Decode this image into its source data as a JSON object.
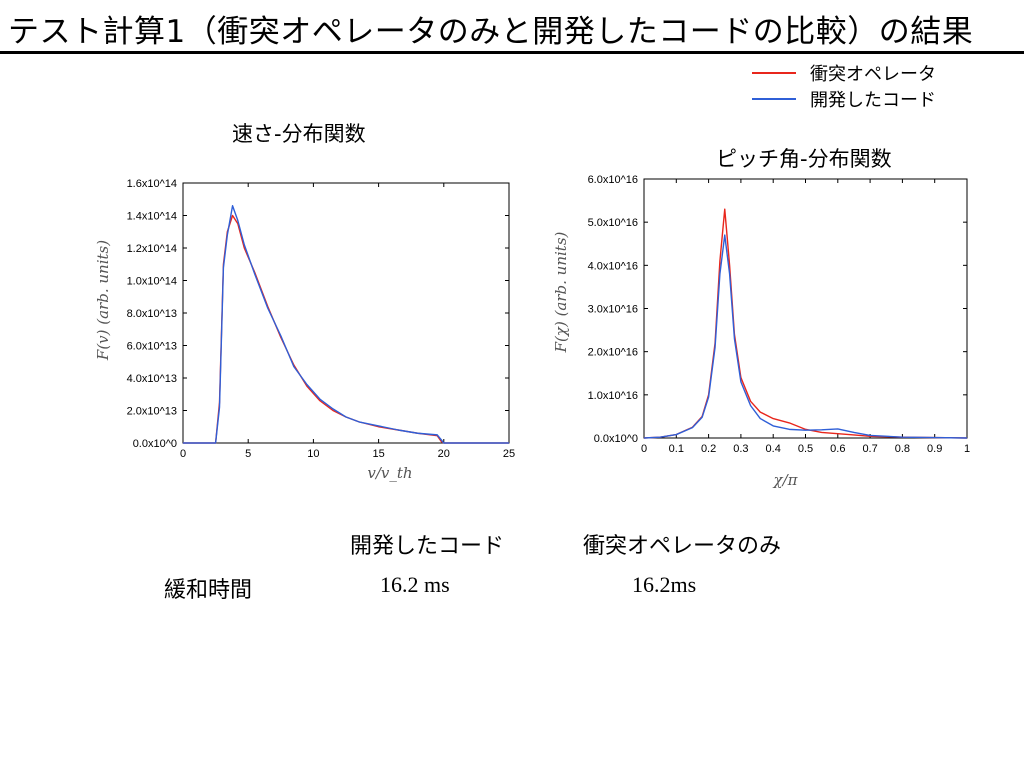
{
  "slide": {
    "title": "テスト計算1（衝突オペレータのみと開発したコードの比較）の結果"
  },
  "legend": [
    {
      "label": "衝突オペレータ",
      "color": "#e8261c"
    },
    {
      "label": "開発したコード",
      "color": "#2f5fd7"
    }
  ],
  "chart_data": [
    {
      "type": "line",
      "title": "速さ-分布関数",
      "xlabel": "v/v_th",
      "ylabel": "F(v)  (arb. units)",
      "xlim": [
        0,
        25
      ],
      "ylim": [
        0,
        160000000000000.0
      ],
      "xticks": [
        {
          "value": 0,
          "label": "0"
        },
        {
          "value": 5,
          "label": "5"
        },
        {
          "value": 10,
          "label": "10"
        },
        {
          "value": 15,
          "label": "15"
        },
        {
          "value": 20,
          "label": "20"
        },
        {
          "value": 25,
          "label": "25"
        }
      ],
      "yticks": [
        {
          "value": 0,
          "label": "0.0x10^0"
        },
        {
          "value": 20000000000000.0,
          "label": "2.0x10^13"
        },
        {
          "value": 40000000000000.0,
          "label": "4.0x10^13"
        },
        {
          "value": 60000000000000.0,
          "label": "6.0x10^13"
        },
        {
          "value": 80000000000000.0,
          "label": "8.0x10^13"
        },
        {
          "value": 100000000000000.0,
          "label": "1.0x10^14"
        },
        {
          "value": 120000000000000.0,
          "label": "1.2x10^14"
        },
        {
          "value": 140000000000000.0,
          "label": "1.4x10^14"
        },
        {
          "value": 160000000000000.0,
          "label": "1.6x10^14"
        }
      ],
      "series": [
        {
          "name": "衝突オペレータ",
          "color": "#e8261c",
          "points": [
            [
              0,
              0
            ],
            [
              2.5,
              0
            ],
            [
              2.8,
              25000000000000.0
            ],
            [
              3.1,
              110000000000000.0
            ],
            [
              3.4,
              130000000000000.0
            ],
            [
              3.8,
              140000000000000.0
            ],
            [
              4.2,
              135000000000000.0
            ],
            [
              4.7,
              120000000000000.0
            ],
            [
              5.5,
              105000000000000.0
            ],
            [
              6.5,
              84000000000000.0
            ],
            [
              7.5,
              65000000000000.0
            ],
            [
              8.5,
              48000000000000.0
            ],
            [
              9.5,
              35000000000000.0
            ],
            [
              10.5,
              26000000000000.0
            ],
            [
              11.5,
              20000000000000.0
            ],
            [
              12.5,
              16000000000000.0
            ],
            [
              13.5,
              13000000000000.0
            ],
            [
              15,
              10000000000000.0
            ],
            [
              16.5,
              8000000000000.0
            ],
            [
              18,
              6000000000000.0
            ],
            [
              19.5,
              4500000000000.0
            ],
            [
              19.8,
              1000000000000.0
            ],
            [
              20,
              0
            ],
            [
              25,
              0
            ]
          ]
        },
        {
          "name": "開発したコード",
          "color": "#2f5fd7",
          "points": [
            [
              0,
              0
            ],
            [
              2.5,
              0
            ],
            [
              2.8,
              22000000000000.0
            ],
            [
              3.1,
              108000000000000.0
            ],
            [
              3.4,
              128000000000000.0
            ],
            [
              3.8,
              146000000000000.0
            ],
            [
              4.2,
              137000000000000.0
            ],
            [
              4.7,
              122000000000000.0
            ],
            [
              5.5,
              104000000000000.0
            ],
            [
              6.5,
              83000000000000.0
            ],
            [
              7.5,
              66000000000000.0
            ],
            [
              8.5,
              47000000000000.0
            ],
            [
              9.5,
              36000000000000.0
            ],
            [
              10.5,
              27000000000000.0
            ],
            [
              11.5,
              21000000000000.0
            ],
            [
              12.5,
              16000000000000.0
            ],
            [
              13.5,
              13000000000000.0
            ],
            [
              15,
              10500000000000.0
            ],
            [
              16.5,
              8000000000000.0
            ],
            [
              18,
              6000000000000.0
            ],
            [
              19.5,
              5000000000000.0
            ],
            [
              19.8,
              2000000000000.0
            ],
            [
              20,
              0
            ],
            [
              25,
              0
            ]
          ]
        }
      ]
    },
    {
      "type": "line",
      "title": "ピッチ角-分布関数",
      "xlabel": "χ/π",
      "ylabel": "F(χ)  (arb. units)",
      "xlim": [
        0,
        1
      ],
      "ylim": [
        0,
        6e+16
      ],
      "xticks": [
        {
          "value": 0,
          "label": "0"
        },
        {
          "value": 0.1,
          "label": "0.1"
        },
        {
          "value": 0.2,
          "label": "0.2"
        },
        {
          "value": 0.3,
          "label": "0.3"
        },
        {
          "value": 0.4,
          "label": "0.4"
        },
        {
          "value": 0.5,
          "label": "0.5"
        },
        {
          "value": 0.6,
          "label": "0.6"
        },
        {
          "value": 0.7,
          "label": "0.7"
        },
        {
          "value": 0.8,
          "label": "0.8"
        },
        {
          "value": 0.9,
          "label": "0.9"
        },
        {
          "value": 1,
          "label": "1"
        }
      ],
      "yticks": [
        {
          "value": 0,
          "label": "0.0x10^0"
        },
        {
          "value": 1e+16,
          "label": "1.0x10^16"
        },
        {
          "value": 2e+16,
          "label": "2.0x10^16"
        },
        {
          "value": 3e+16,
          "label": "3.0x10^16"
        },
        {
          "value": 4e+16,
          "label": "4.0x10^16"
        },
        {
          "value": 5e+16,
          "label": "5.0x10^16"
        },
        {
          "value": 6e+16,
          "label": "6.0x10^16"
        }
      ],
      "series": [
        {
          "name": "衝突オペレータ",
          "color": "#e8261c",
          "points": [
            [
              0,
              0
            ],
            [
              0.05,
              200000000000000.0
            ],
            [
              0.1,
              800000000000000.0
            ],
            [
              0.15,
              2500000000000000.0
            ],
            [
              0.18,
              5000000000000000.0
            ],
            [
              0.2,
              1e+16
            ],
            [
              0.22,
              2.2e+16
            ],
            [
              0.235,
              4.1e+16
            ],
            [
              0.25,
              5.3e+16
            ],
            [
              0.265,
              4e+16
            ],
            [
              0.28,
              2.4e+16
            ],
            [
              0.3,
              1.4e+16
            ],
            [
              0.33,
              8500000000000000.0
            ],
            [
              0.36,
              6000000000000000.0
            ],
            [
              0.4,
              4500000000000000.0
            ],
            [
              0.45,
              3500000000000000.0
            ],
            [
              0.5,
              2000000000000000.0
            ],
            [
              0.55,
              1300000000000000.0
            ],
            [
              0.6,
              1000000000000000.0
            ],
            [
              0.65,
              700000000000000.0
            ],
            [
              0.7,
              400000000000000.0
            ],
            [
              0.8,
              200000000000000.0
            ],
            [
              0.9,
              100000000000000.0
            ],
            [
              1,
              0
            ]
          ]
        },
        {
          "name": "開発したコード",
          "color": "#2f5fd7",
          "points": [
            [
              0,
              0
            ],
            [
              0.05,
              200000000000000.0
            ],
            [
              0.1,
              800000000000000.0
            ],
            [
              0.15,
              2400000000000000.0
            ],
            [
              0.18,
              4800000000000000.0
            ],
            [
              0.2,
              9500000000000000.0
            ],
            [
              0.22,
              2.1e+16
            ],
            [
              0.235,
              3.8e+16
            ],
            [
              0.25,
              4.7e+16
            ],
            [
              0.265,
              3.8e+16
            ],
            [
              0.28,
              2.3e+16
            ],
            [
              0.3,
              1.3e+16
            ],
            [
              0.33,
              7500000000000000.0
            ],
            [
              0.36,
              4500000000000000.0
            ],
            [
              0.4,
              2800000000000000.0
            ],
            [
              0.45,
              2000000000000000.0
            ],
            [
              0.5,
              1800000000000000.0
            ],
            [
              0.55,
              1900000000000000.0
            ],
            [
              0.6,
              2100000000000000.0
            ],
            [
              0.65,
              1300000000000000.0
            ],
            [
              0.7,
              600000000000000.0
            ],
            [
              0.8,
              200000000000000.0
            ],
            [
              0.9,
              100000000000000.0
            ],
            [
              1,
              0
            ]
          ]
        }
      ]
    }
  ],
  "comparison_table": {
    "col_headers": [
      "開発したコード",
      "衝突オペレータのみ"
    ],
    "row_label": "緩和時間",
    "values": [
      "16.2 ms",
      "16.2ms"
    ]
  }
}
